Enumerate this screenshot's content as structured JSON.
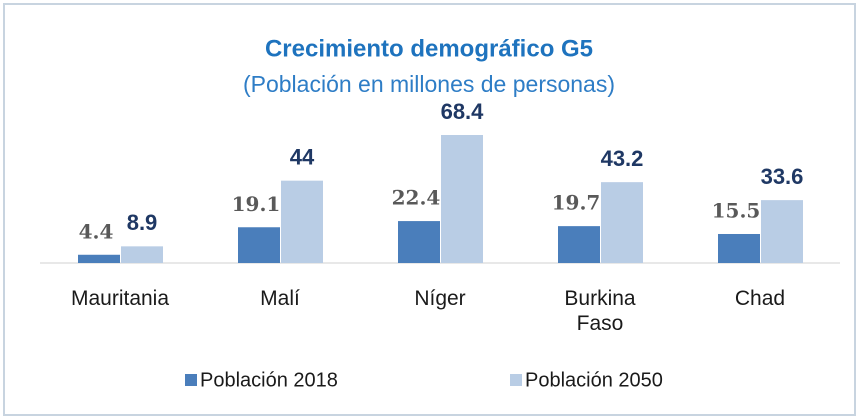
{
  "chart_data": {
    "type": "bar",
    "title": "Crecimiento demográfico G5",
    "subtitle": "(Población en millones de personas)",
    "categories": [
      "Mauritania",
      "Malí",
      "Níger",
      "Burkina Faso",
      "Chad"
    ],
    "series": [
      {
        "name": "Población 2018",
        "color": "#4a7ebb",
        "values": [
          4.4,
          19.1,
          22.4,
          19.7,
          15.5
        ]
      },
      {
        "name": "Población 2050",
        "color": "#b9cde5",
        "values": [
          8.9,
          44,
          68.4,
          43.2,
          33.6
        ]
      }
    ],
    "legend": "bottom"
  }
}
